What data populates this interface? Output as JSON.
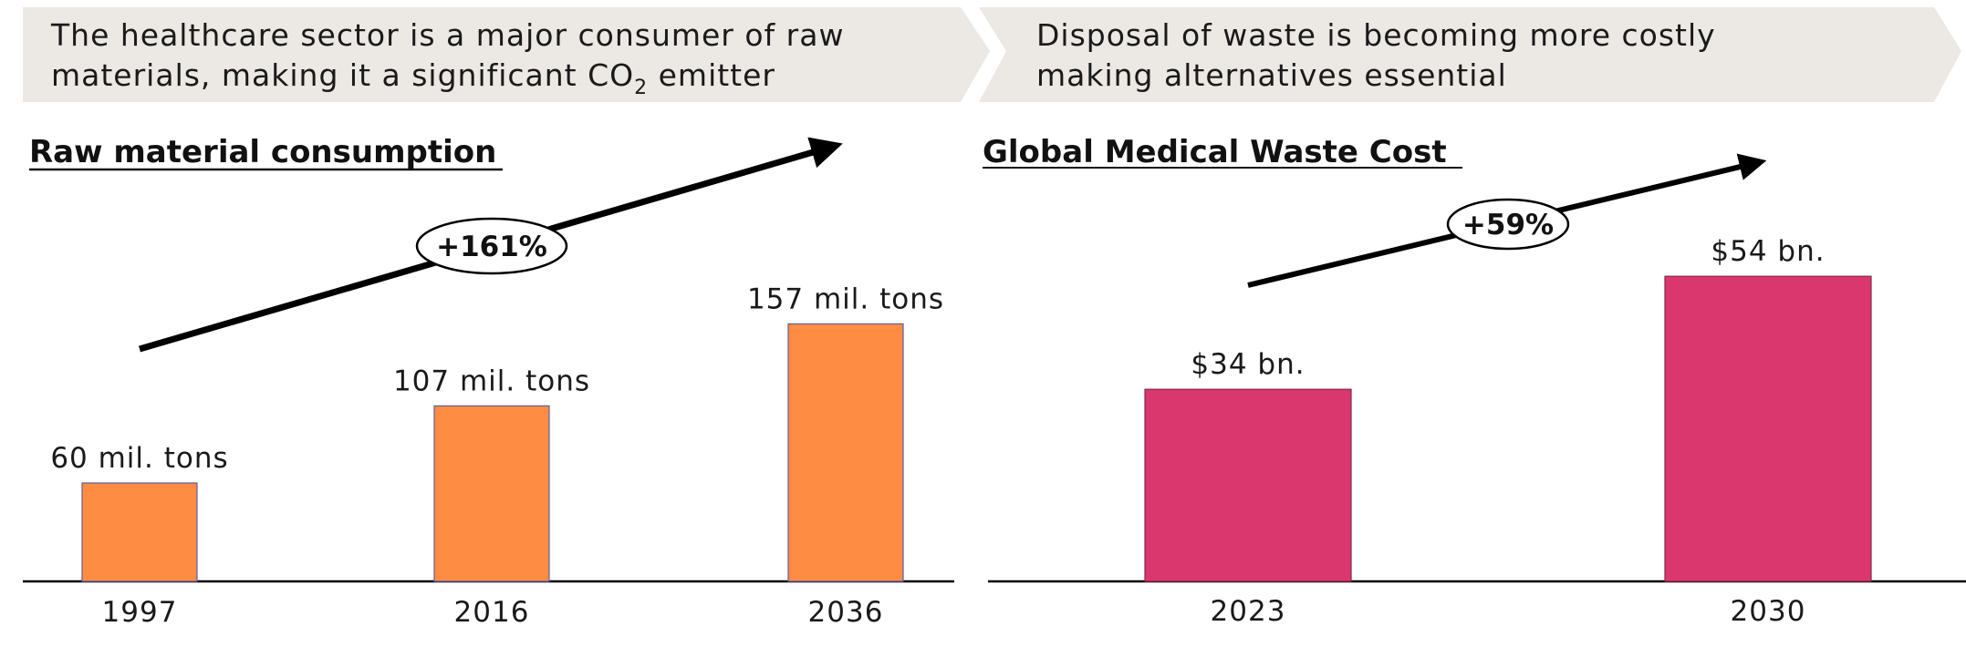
{
  "banners": [
    {
      "line1": "The healthcare sector is a major consumer of raw",
      "line2_pre": "materials, making it a significant CO",
      "line2_sub": "2",
      "line2_post": " emitter"
    },
    {
      "line1": "Disposal of waste is becoming more costly",
      "line2": "making alternatives essential"
    }
  ],
  "chart_data": [
    {
      "type": "bar",
      "title": "Raw material consumption",
      "categories": [
        "1997",
        "2016",
        "2036"
      ],
      "values": [
        60,
        107,
        157
      ],
      "value_labels": [
        "60 mil. tons",
        "107 mil. tons",
        "157 mil. tons"
      ],
      "unit": "mil. tons",
      "growth_label": "+161%",
      "bar_color": "#FF8C42",
      "bar_border": "#5A5FA0",
      "ylim": [
        0,
        180
      ]
    },
    {
      "type": "bar",
      "title": "Global Medical Waste Cost",
      "categories": [
        "2023",
        "2030"
      ],
      "values": [
        34,
        54
      ],
      "value_labels": [
        "$34 bn.",
        "$54 bn."
      ],
      "unit": "$ bn.",
      "growth_label": "+59%",
      "bar_color": "#D9376E",
      "bar_border": "#8A2448",
      "ylim": [
        0,
        62
      ]
    }
  ],
  "colors": {
    "banner_bg": "#ECE8E4",
    "axis": "#000000",
    "arrow": "#000000"
  }
}
